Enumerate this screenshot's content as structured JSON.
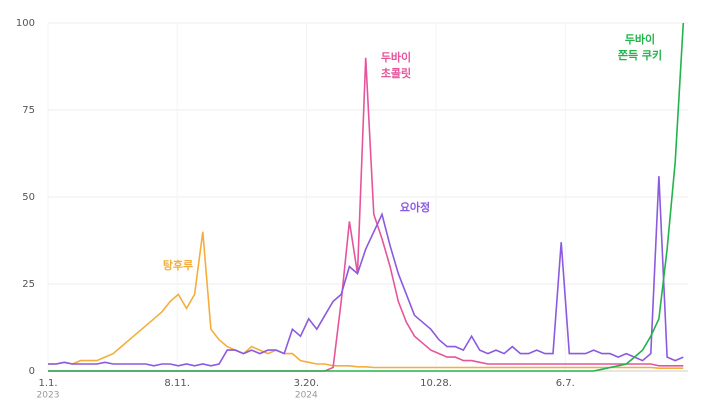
{
  "chart_data": {
    "type": "line",
    "x": [
      0,
      14,
      28,
      42,
      56,
      70,
      84,
      98,
      112,
      126,
      140,
      154,
      168,
      182,
      196,
      210,
      224,
      238,
      252,
      266,
      280,
      294,
      308,
      322,
      336,
      350,
      364,
      378,
      392,
      406,
      420,
      434,
      448,
      462,
      476,
      490,
      504,
      518,
      532,
      546,
      560,
      574,
      588,
      602,
      616,
      630,
      644,
      658,
      672,
      686,
      700,
      714,
      728,
      742,
      756,
      770,
      784,
      798,
      812,
      826,
      840,
      854,
      868,
      882,
      896,
      910,
      924,
      938,
      952,
      966,
      980,
      994,
      1008,
      1022,
      1036,
      1050,
      1064,
      1078,
      1092
    ],
    "xlim": [
      0,
      1100
    ],
    "xticks": [
      {
        "value": 0,
        "label": "1.1."
      },
      {
        "value": 222,
        "label": "8.11."
      },
      {
        "value": 444,
        "label": "3.20."
      },
      {
        "value": 667,
        "label": "10.28."
      },
      {
        "value": 889,
        "label": "6.7."
      }
    ],
    "x_year_labels": [
      {
        "value": 0,
        "label": "2023"
      },
      {
        "value": 444,
        "label": "2024"
      }
    ],
    "ylim": [
      0,
      100
    ],
    "yticks": [
      0,
      25,
      50,
      75,
      100
    ],
    "grid": true,
    "series": [
      {
        "name": "탕후루",
        "color": "#f3ae3d",
        "values": [
          2,
          2,
          2.5,
          2,
          3,
          3,
          3,
          4,
          5,
          7,
          9,
          11,
          13,
          15,
          17,
          20,
          22,
          18,
          22,
          40,
          12,
          9,
          7,
          6,
          5,
          7,
          6,
          5,
          6,
          5,
          5,
          3,
          2.5,
          2,
          2,
          1.5,
          1.5,
          1.5,
          1.2,
          1.2,
          1,
          1,
          1,
          1,
          1,
          1,
          1,
          1,
          1,
          1,
          1,
          1,
          1,
          1,
          1,
          1,
          1,
          1,
          1,
          1,
          1,
          1,
          1,
          1,
          1,
          1,
          1,
          1,
          1,
          1,
          1,
          1,
          1,
          1,
          1,
          0.8,
          0.8,
          0.8,
          0.8
        ]
      },
      {
        "name": "두바이 초콜릿",
        "color": "#e6559b",
        "values": [
          0,
          0,
          0,
          0,
          0,
          0,
          0,
          0,
          0,
          0,
          0,
          0,
          0,
          0,
          0,
          0,
          0,
          0,
          0,
          0,
          0,
          0,
          0,
          0,
          0,
          0,
          0,
          0,
          0,
          0,
          0,
          0,
          0,
          0,
          0,
          1,
          20,
          43,
          28,
          90,
          45,
          38,
          30,
          20,
          14,
          10,
          8,
          6,
          5,
          4,
          4,
          3,
          3,
          2.5,
          2,
          2,
          2,
          2,
          2,
          2,
          2,
          2,
          2,
          2,
          2,
          2,
          2,
          2,
          2,
          2,
          2,
          2,
          2,
          2,
          2,
          1.5,
          1.5,
          1.5,
          1.5
        ]
      },
      {
        "name": "요아정",
        "color": "#8a5ae0",
        "values": [
          2,
          2,
          2.5,
          2,
          2,
          2,
          2,
          2.5,
          2,
          2,
          2,
          2,
          2,
          1.5,
          2,
          2,
          1.5,
          2,
          1.5,
          2,
          1.5,
          2,
          6,
          6,
          5,
          6,
          5,
          6,
          6,
          5,
          12,
          10,
          15,
          12,
          16,
          20,
          22,
          30,
          28,
          35,
          40,
          45,
          36,
          28,
          22,
          16,
          14,
          12,
          9,
          7,
          7,
          6,
          10,
          6,
          5,
          6,
          5,
          7,
          5,
          5,
          6,
          5,
          5,
          37,
          5,
          5,
          5,
          6,
          5,
          5,
          4,
          5,
          4,
          3,
          5,
          56,
          4,
          3,
          4
        ]
      },
      {
        "name": "두바이 쫀득 쿠키",
        "color": "#22b34c",
        "values": [
          0,
          0,
          0,
          0,
          0,
          0,
          0,
          0,
          0,
          0,
          0,
          0,
          0,
          0,
          0,
          0,
          0,
          0,
          0,
          0,
          0,
          0,
          0,
          0,
          0,
          0,
          0,
          0,
          0,
          0,
          0,
          0,
          0,
          0,
          0,
          0,
          0,
          0,
          0,
          0,
          0,
          0,
          0,
          0,
          0,
          0,
          0,
          0,
          0,
          0,
          0,
          0,
          0,
          0,
          0,
          0,
          0,
          0,
          0,
          0,
          0,
          0,
          0,
          0,
          0,
          0,
          0,
          0,
          0.5,
          1,
          1.5,
          2,
          4,
          6,
          10,
          15,
          35,
          60,
          100
        ]
      }
    ]
  }
}
